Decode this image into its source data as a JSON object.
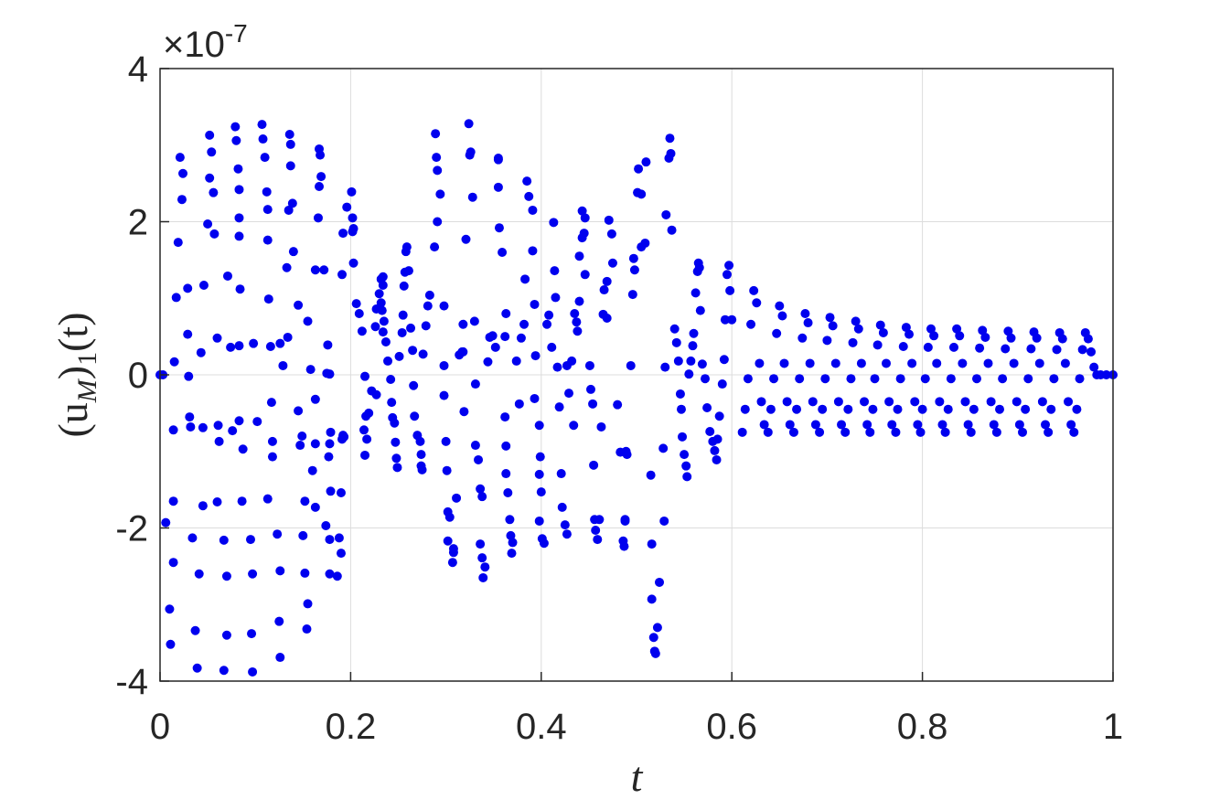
{
  "chart_data": {
    "type": "scatter",
    "color": "#0000ee",
    "grid": true,
    "xlabel": "t",
    "ylabel": [
      "(u",
      "M",
      ")",
      "1",
      "(t)"
    ],
    "y_multiplier": {
      "base": "×10",
      "exponent": "-7"
    },
    "xlim": [
      0,
      1
    ],
    "xticks": [
      0,
      0.2,
      0.4,
      0.6,
      0.8,
      1
    ],
    "ylim": [
      -4,
      4
    ],
    "yticks": [
      -4,
      -2,
      0,
      2,
      4
    ],
    "x": [
      0.0,
      0.003,
      0.006,
      0.01,
      0.011,
      0.014,
      0.015,
      0.017,
      0.019,
      0.021,
      0.023,
      0.024,
      0.014,
      0.014,
      0.029,
      0.029,
      0.03,
      0.031,
      0.032,
      0.034,
      0.041,
      0.037,
      0.039,
      0.043,
      0.045,
      0.045,
      0.046,
      0.05,
      0.052,
      0.052,
      0.054,
      0.056,
      0.057,
      0.06,
      0.061,
      0.062,
      0.06,
      0.067,
      0.07,
      0.07,
      0.067,
      0.071,
      0.074,
      0.076,
      0.079,
      0.08,
      0.082,
      0.083,
      0.083,
      0.083,
      0.084,
      0.083,
      0.083,
      0.087,
      0.086,
      0.095,
      0.097,
      0.096,
      0.097,
      0.098,
      0.102,
      0.107,
      0.108,
      0.11,
      0.112,
      0.113,
      0.113,
      0.114,
      0.116,
      0.117,
      0.118,
      0.118,
      0.113,
      0.123,
      0.126,
      0.125,
      0.126,
      0.126,
      0.129,
      0.134,
      0.133,
      0.135,
      0.137,
      0.136,
      0.137,
      0.139,
      0.14,
      0.145,
      0.145,
      0.147,
      0.149,
      0.152,
      0.15,
      0.152,
      0.155,
      0.154,
      0.155,
      0.158,
      0.163,
      0.163,
      0.16,
      0.163,
      0.167,
      0.168,
      0.169,
      0.167,
      0.166,
      0.163,
      0.172,
      0.176,
      0.175,
      0.178,
      0.177,
      0.178,
      0.179,
      0.179,
      0.174,
      0.178,
      0.178,
      0.186,
      0.19,
      0.188,
      0.19,
      0.192,
      0.191,
      0.193,
      0.191,
      0.192,
      0.196,
      0.202,
      0.201,
      0.202,
      0.203,
      0.203,
      0.206,
      0.209,
      0.212,
      0.215,
      0.216,
      0.214,
      0.217,
      0.215,
      0.219,
      0.222,
      0.227,
      0.226,
      0.227,
      0.23,
      0.232,
      0.234,
      0.234,
      0.233,
      0.235,
      0.232,
      0.234,
      0.237,
      0.239,
      0.242,
      0.243,
      0.244,
      0.246,
      0.247,
      0.248,
      0.249,
      0.251,
      0.254,
      0.255,
      0.256,
      0.257,
      0.258,
      0.259,
      0.261,
      0.263,
      0.265,
      0.266,
      0.267,
      0.27,
      0.273,
      0.274,
      0.274,
      0.275,
      0.276,
      0.279,
      0.281,
      0.283,
      0.288,
      0.291,
      0.289,
      0.291,
      0.29,
      0.294,
      0.298,
      0.298,
      0.298,
      0.3,
      0.301,
      0.302,
      0.302,
      0.304,
      0.308,
      0.307,
      0.308,
      0.311,
      0.314,
      0.317,
      0.318,
      0.318,
      0.319,
      0.321,
      0.324,
      0.325,
      0.326,
      0.328,
      0.33,
      0.331,
      0.331,
      0.334,
      0.336,
      0.338,
      0.336,
      0.338,
      0.339,
      0.341,
      0.344,
      0.346,
      0.349,
      0.352,
      0.355,
      0.355,
      0.355,
      0.356,
      0.359,
      0.363,
      0.362,
      0.362,
      0.363,
      0.363,
      0.365,
      0.367,
      0.368,
      0.369,
      0.37,
      0.374,
      0.377,
      0.379,
      0.382,
      0.383,
      0.385,
      0.387,
      0.391,
      0.391,
      0.393,
      0.394,
      0.393,
      0.398,
      0.399,
      0.398,
      0.4,
      0.398,
      0.401,
      0.403,
      0.406,
      0.408,
      0.411,
      0.413,
      0.414,
      0.415,
      0.417,
      0.419,
      0.421,
      0.422,
      0.425,
      0.427,
      0.427,
      0.429,
      0.432,
      0.434,
      0.435,
      0.437,
      0.438,
      0.44,
      0.44,
      0.443,
      0.443,
      0.445,
      0.446,
      0.446,
      0.451,
      0.452,
      0.454,
      0.455,
      0.456,
      0.457,
      0.459,
      0.461,
      0.463,
      0.465,
      0.466,
      0.469,
      0.469,
      0.471,
      0.474,
      0.475,
      0.48,
      0.483,
      0.486,
      0.487,
      0.488,
      0.488,
      0.489,
      0.49,
      0.494,
      0.496,
      0.497,
      0.498,
      0.501,
      0.502,
      0.505,
      0.505,
      0.509,
      0.51,
      0.515,
      0.516,
      0.516,
      0.518,
      0.519,
      0.52,
      0.522,
      0.524,
      0.528,
      0.529,
      0.53,
      0.531,
      0.534,
      0.535,
      0.536,
      0.537,
      0.54,
      0.542,
      0.544,
      0.546,
      0.547,
      0.548,
      0.55,
      0.552,
      0.553,
      0.555,
      0.557,
      0.559,
      0.56,
      0.562,
      0.564,
      0.565,
      0.566,
      0.567,
      0.569,
      0.572,
      0.574,
      0.577,
      0.58,
      0.582,
      0.584,
      0.585,
      0.587,
      0.59,
      0.592,
      0.593,
      0.595,
      0.597,
      0.598,
      0.6,
      0.611,
      0.614,
      0.617,
      0.62,
      0.623,
      0.626,
      0.629,
      0.631,
      0.634,
      0.638,
      0.641,
      0.644,
      0.647,
      0.65,
      0.653,
      0.655,
      0.658,
      0.661,
      0.665,
      0.668,
      0.671,
      0.674,
      0.677,
      0.68,
      0.682,
      0.685,
      0.688,
      0.692,
      0.695,
      0.698,
      0.7,
      0.703,
      0.706,
      0.709,
      0.712,
      0.715,
      0.719,
      0.722,
      0.725,
      0.727,
      0.73,
      0.733,
      0.736,
      0.739,
      0.742,
      0.745,
      0.748,
      0.75,
      0.753,
      0.756,
      0.759,
      0.762,
      0.765,
      0.768,
      0.772,
      0.774,
      0.777,
      0.78,
      0.783,
      0.786,
      0.789,
      0.792,
      0.795,
      0.798,
      0.8,
      0.803,
      0.806,
      0.809,
      0.812,
      0.815,
      0.818,
      0.821,
      0.824,
      0.827,
      0.83,
      0.833,
      0.836,
      0.839,
      0.842,
      0.845,
      0.848,
      0.851,
      0.854,
      0.857,
      0.86,
      0.863,
      0.866,
      0.869,
      0.872,
      0.875,
      0.878,
      0.881,
      0.884,
      0.887,
      0.89,
      0.893,
      0.896,
      0.899,
      0.902,
      0.905,
      0.908,
      0.911,
      0.914,
      0.917,
      0.92,
      0.923,
      0.926,
      0.929,
      0.932,
      0.935,
      0.938,
      0.941,
      0.944,
      0.947,
      0.95,
      0.953,
      0.956,
      0.959,
      0.962,
      0.965,
      0.968,
      0.971,
      0.974,
      0.977,
      0.98,
      0.983,
      0.987,
      0.993,
      1.0
    ],
    "values": [
      0,
      0,
      -1.93,
      -3.06,
      -3.52,
      -0.72,
      0.17,
      1.01,
      1.73,
      2.84,
      2.29,
      2.63,
      -1.65,
      -2.45,
      1.13,
      0.53,
      -0.02,
      -0.55,
      -0.68,
      -2.13,
      -2.6,
      -3.34,
      -3.83,
      0.29,
      -0.69,
      -1.71,
      1.17,
      1.97,
      2.57,
      3.13,
      2.91,
      2.38,
      1.84,
      0.48,
      -0.66,
      -0.87,
      -1.66,
      -2.16,
      -2.63,
      -3.4,
      -3.86,
      1.29,
      0.36,
      -0.73,
      3.24,
      3.06,
      2.69,
      2.42,
      2.05,
      1.81,
      1.12,
      0.38,
      -0.6,
      -0.97,
      -1.65,
      -2.15,
      -2.6,
      -3.38,
      -3.88,
      0.41,
      -0.61,
      3.27,
      3.08,
      2.84,
      2.39,
      2.16,
      1.76,
      0.99,
      0.37,
      -0.36,
      -0.87,
      -1.07,
      -1.62,
      -2.08,
      -2.56,
      -3.22,
      -3.69,
      0.41,
      0.12,
      0.49,
      1.4,
      2.15,
      2.73,
      3.14,
      3.01,
      2.24,
      1.61,
      0.91,
      -0.47,
      -0.92,
      -0.8,
      -1.65,
      -2.1,
      -2.59,
      -2.99,
      -3.32,
      0.7,
      0.07,
      -0.32,
      -0.9,
      -1.25,
      -1.73,
      2.95,
      2.87,
      2.59,
      2.46,
      2.05,
      1.37,
      1.37,
      0.39,
      0.02,
      0.01,
      -1.07,
      -0.9,
      -1.52,
      -0.75,
      -1.97,
      -2.15,
      -2.6,
      -2.63,
      -2.33,
      -2.13,
      -1.54,
      -0.79,
      -0.84,
      -0.81,
      1.31,
      1.85,
      2.19,
      2.05,
      2.39,
      1.87,
      1.46,
      1.91,
      0.93,
      0.8,
      0.57,
      -0.02,
      -0.54,
      -0.72,
      -0.84,
      -1.05,
      -0.5,
      -0.21,
      -0.26,
      0.63,
      0.86,
      1.06,
      1.25,
      1.17,
      1.28,
      0.84,
      0.7,
      0.94,
      0.56,
      0.43,
      0.18,
      -0.06,
      -0.36,
      -0.56,
      -0.63,
      -0.88,
      -1.09,
      -1.21,
      0.24,
      0.55,
      0.78,
      1.16,
      1.34,
      1.61,
      1.67,
      1.36,
      0.61,
      0.32,
      -0.14,
      -0.54,
      -0.79,
      -0.87,
      -1.04,
      -1.19,
      -1.24,
      0.27,
      0.64,
      0.9,
      1.04,
      1.67,
      2.0,
      3.15,
      2.67,
      2.84,
      2.36,
      0.9,
      0.12,
      -0.27,
      -0.87,
      -1.25,
      -1.79,
      -2.17,
      -1.86,
      -2.27,
      -2.45,
      -2.32,
      -1.61,
      0.26,
      0.3,
      0.66,
      0.3,
      -0.48,
      1.77,
      3.28,
      2.87,
      2.91,
      2.32,
      0.7,
      -0.12,
      -0.92,
      -1.11,
      -1.49,
      -1.59,
      -2.21,
      -2.39,
      -2.65,
      -2.51,
      0.17,
      0.49,
      0.51,
      0.36,
      2.83,
      2.81,
      2.45,
      1.92,
      1.6,
      0.8,
      0.5,
      -0.55,
      -0.93,
      -1.29,
      -1.54,
      -1.89,
      -2.1,
      -2.33,
      -2.19,
      0.18,
      -0.38,
      0.48,
      0.66,
      1.25,
      2.53,
      2.33,
      2.15,
      1.62,
      0.92,
      0.25,
      -0.31,
      -0.66,
      -1.07,
      -1.3,
      -1.53,
      -1.91,
      -2.14,
      -2.2,
      0.66,
      0.78,
      0.36,
      1.99,
      1.36,
      1.01,
      0.1,
      -0.42,
      -1.29,
      -1.73,
      -1.96,
      -2.08,
      0.12,
      -0.24,
      0.18,
      -0.66,
      0.8,
      0.69,
      0.57,
      0.96,
      1.55,
      1.79,
      2.14,
      1.85,
      2.05,
      1.31,
      0.12,
      -0.19,
      -0.38,
      -1.18,
      -1.89,
      -2.03,
      -2.15,
      -1.89,
      -0.68,
      0.79,
      1.11,
      0.74,
      1.22,
      2.02,
      1.84,
      1.46,
      -0.39,
      -1.01,
      -2.17,
      -2.24,
      -1.91,
      -1.89,
      -1.0,
      -1.04,
      0.12,
      1.05,
      1.52,
      1.37,
      2.38,
      2.69,
      2.36,
      1.67,
      1.72,
      2.78,
      -1.31,
      -2.21,
      -2.93,
      -3.43,
      -3.61,
      -3.64,
      -3.3,
      -2.71,
      -0.96,
      -1.91,
      0.1,
      2.09,
      2.83,
      3.09,
      2.89,
      1.89,
      0.6,
      0.42,
      0.18,
      -0.25,
      -0.45,
      -0.81,
      -1.04,
      -1.19,
      -1.33,
      0.01,
      0.18,
      0.38,
      0.54,
      1.07,
      1.35,
      1.46,
      1.4,
      0.84,
      0.14,
      -0.05,
      -0.43,
      -0.74,
      -0.87,
      -0.99,
      -1.11,
      -0.84,
      -0.54,
      -0.12,
      0.2,
      0.72,
      1.31,
      1.43,
      1.1,
      0.72,
      -0.75,
      -0.45,
      -0.05,
      0.66,
      1.1,
      0.94,
      0.15,
      -0.35,
      -0.65,
      -0.75,
      -0.45,
      -0.05,
      0.54,
      0.9,
      0.77,
      0.15,
      -0.35,
      -0.65,
      -0.75,
      -0.45,
      -0.05,
      0.48,
      0.8,
      0.68,
      0.15,
      -0.35,
      -0.65,
      -0.75,
      -0.45,
      -0.05,
      0.45,
      0.75,
      0.64,
      0.15,
      -0.35,
      -0.65,
      -0.75,
      -0.45,
      -0.05,
      0.42,
      0.7,
      0.6,
      0.15,
      -0.35,
      -0.65,
      -0.75,
      -0.45,
      -0.05,
      0.39,
      0.65,
      0.55,
      0.15,
      -0.35,
      -0.65,
      -0.75,
      -0.45,
      -0.05,
      0.37,
      0.62,
      0.53,
      0.15,
      -0.35,
      -0.65,
      -0.75,
      -0.45,
      -0.05,
      0.36,
      0.6,
      0.51,
      0.15,
      -0.35,
      -0.65,
      -0.75,
      -0.45,
      -0.05,
      0.36,
      0.6,
      0.51,
      0.15,
      -0.35,
      -0.65,
      -0.75,
      -0.45,
      -0.05,
      0.35,
      0.58,
      0.49,
      0.15,
      -0.35,
      -0.65,
      -0.75,
      -0.45,
      -0.05,
      0.34,
      0.57,
      0.48,
      0.15,
      -0.35,
      -0.65,
      -0.75,
      -0.45,
      -0.05,
      0.34,
      0.56,
      0.48,
      0.15,
      -0.35,
      -0.65,
      -0.75,
      -0.45,
      -0.05,
      0.33,
      0.55,
      0.47,
      0.15,
      -0.35,
      -0.65,
      -0.75,
      -0.45,
      -0.05,
      0.33,
      0.55,
      0.47,
      0.3,
      0.1,
      0,
      0,
      0,
      0
    ]
  }
}
